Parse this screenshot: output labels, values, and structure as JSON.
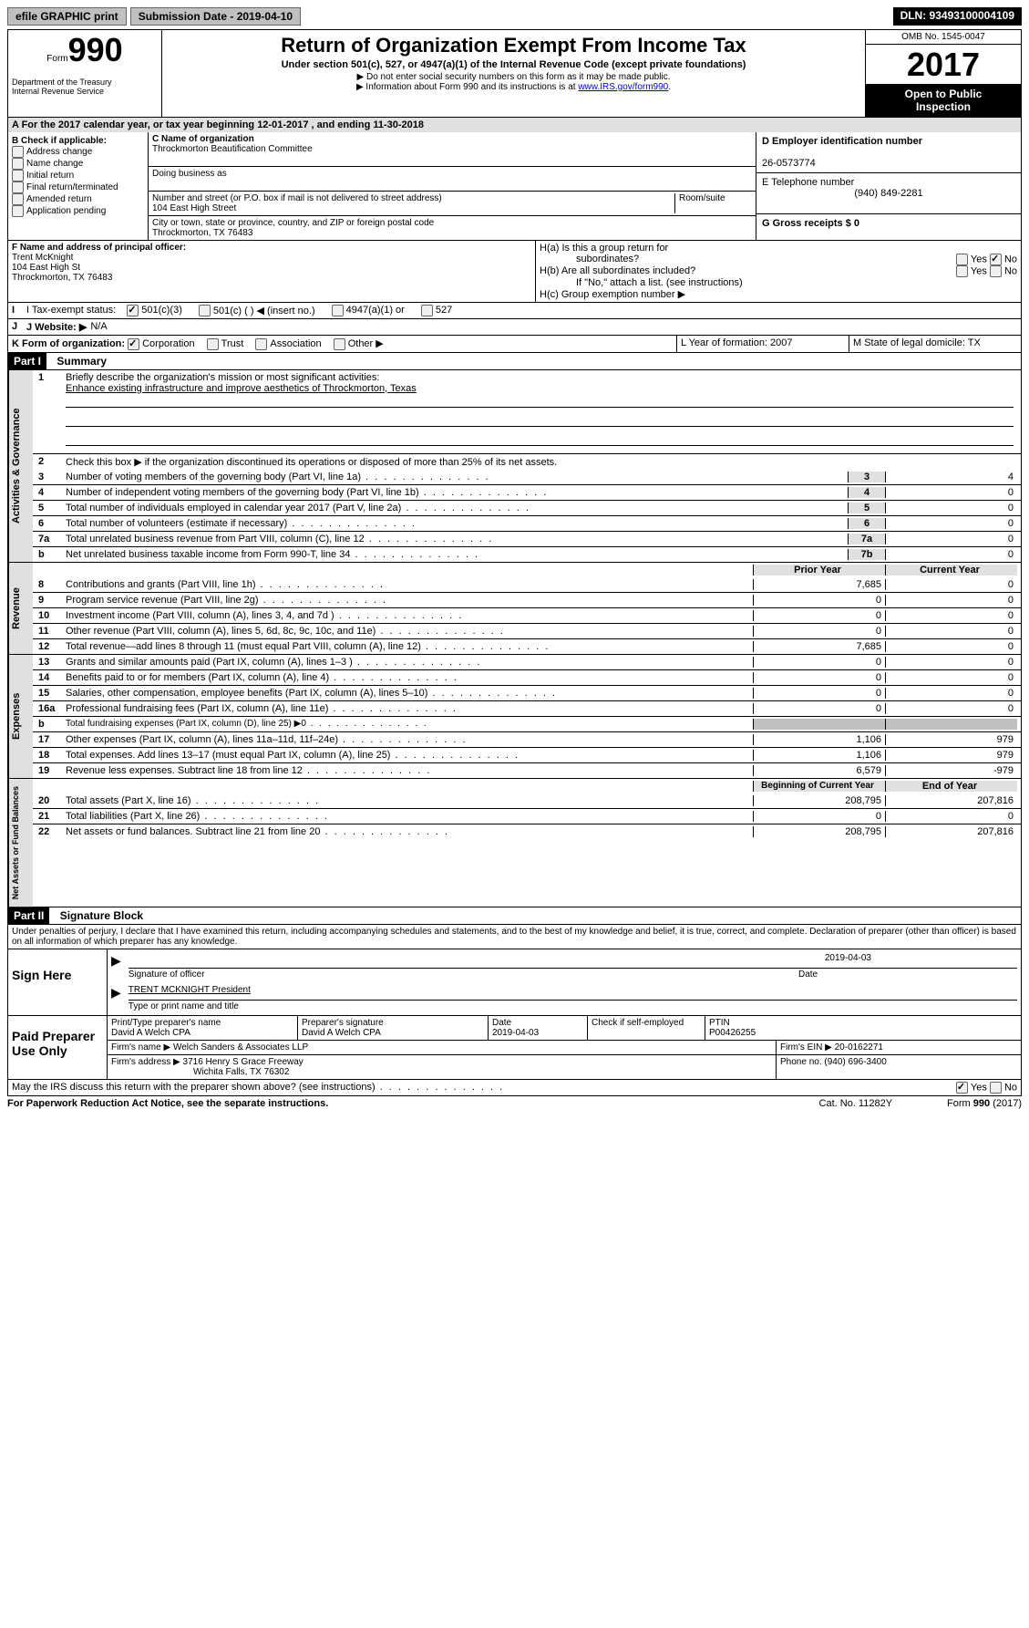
{
  "topbar": {
    "efile": "efile GRAPHIC print",
    "submission": "Submission Date - 2019-04-10",
    "dln": "DLN: 93493100004109"
  },
  "header": {
    "form_label": "Form",
    "form_num": "990",
    "dept1": "Department of the Treasury",
    "dept2": "Internal Revenue Service",
    "title": "Return of Organization Exempt From Income Tax",
    "sub": "Under section 501(c), 527, or 4947(a)(1) of the Internal Revenue Code (except private foundations)",
    "note1": "▶ Do not enter social security numbers on this form as it may be made public.",
    "note2_pre": "▶ Information about Form 990 and its instructions is at ",
    "note2_link": "www.IRS.gov/form990",
    "omb": "OMB No. 1545-0047",
    "year": "2017",
    "inspect1": "Open to Public",
    "inspect2": "Inspection"
  },
  "section_a": "A  For the 2017 calendar year, or tax year beginning 12-01-2017   , and ending 11-30-2018",
  "section_b": {
    "label": "B Check if applicable:",
    "items": [
      "Address change",
      "Name change",
      "Initial return",
      "Final return/terminated",
      "Amended return",
      "Application pending"
    ]
  },
  "section_c": {
    "name_label": "C Name of organization",
    "name": "Throckmorton Beautification Committee",
    "dba_label": "Doing business as",
    "addr_label": "Number and street (or P.O. box if mail is not delivered to street address)",
    "room_label": "Room/suite",
    "addr": "104 East High Street",
    "city_label": "City or town, state or province, country, and ZIP or foreign postal code",
    "city": "Throckmorton, TX  76483"
  },
  "section_d": {
    "ein_label": "D Employer identification number",
    "ein": "26-0573774",
    "tel_label": "E Telephone number",
    "tel": "(940) 849-2281",
    "gross_label": "G Gross receipts $ 0"
  },
  "section_f": {
    "label": "F  Name and address of principal officer:",
    "name": "Trent McKnight",
    "addr": "104 East High St",
    "city": "Throckmorton, TX  76483"
  },
  "section_h": {
    "ha": "H(a)  Is this a group return for",
    "ha2": "subordinates?",
    "hb": "H(b)  Are all subordinates included?",
    "hb_note": "If \"No,\" attach a list. (see instructions)",
    "hc": "H(c)  Group exemption number ▶",
    "yes": "Yes",
    "no": "No"
  },
  "section_i": {
    "label": "I  Tax-exempt status:",
    "opt1": "501(c)(3)",
    "opt2": "501(c) (   ) ◀ (insert no.)",
    "opt3": "4947(a)(1) or",
    "opt4": "527"
  },
  "section_j": {
    "label": "J  Website: ▶",
    "value": "N/A"
  },
  "section_k": {
    "label": "K Form of organization:",
    "opts": [
      "Corporation",
      "Trust",
      "Association",
      "Other ▶"
    ],
    "l_label": "L Year of formation: 2007",
    "m_label": "M State of legal domicile: TX"
  },
  "part1": {
    "header": "Part I",
    "title": "Summary",
    "gov_label": "Activities & Governance",
    "rev_label": "Revenue",
    "exp_label": "Expenses",
    "net_label": "Net Assets or Fund Balances",
    "line1": "Briefly describe the organization's mission or most significant activities:",
    "mission": "Enhance existing infrastructure and improve aesthetics of Throckmorton, Texas",
    "line2": "Check this box ▶        if the organization discontinued its operations or disposed of more than 25% of its net assets.",
    "prior_year": "Prior Year",
    "current_year": "Current Year",
    "begin_year": "Beginning of Current Year",
    "end_year": "End of Year",
    "rows_gov": [
      {
        "no": "3",
        "text": "Number of voting members of the governing body (Part VI, line 1a)",
        "box": "3",
        "val": "4"
      },
      {
        "no": "4",
        "text": "Number of independent voting members of the governing body (Part VI, line 1b)",
        "box": "4",
        "val": "0"
      },
      {
        "no": "5",
        "text": "Total number of individuals employed in calendar year 2017 (Part V, line 2a)",
        "box": "5",
        "val": "0"
      },
      {
        "no": "6",
        "text": "Total number of volunteers (estimate if necessary)",
        "box": "6",
        "val": "0"
      },
      {
        "no": "7a",
        "text": "Total unrelated business revenue from Part VIII, column (C), line 12",
        "box": "7a",
        "val": "0"
      },
      {
        "no": "b",
        "text": "Net unrelated business taxable income from Form 990-T, line 34",
        "box": "7b",
        "val": "0"
      }
    ],
    "rows_rev": [
      {
        "no": "8",
        "text": "Contributions and grants (Part VIII, line 1h)",
        "p": "7,685",
        "c": "0"
      },
      {
        "no": "9",
        "text": "Program service revenue (Part VIII, line 2g)",
        "p": "0",
        "c": "0"
      },
      {
        "no": "10",
        "text": "Investment income (Part VIII, column (A), lines 3, 4, and 7d )",
        "p": "0",
        "c": "0"
      },
      {
        "no": "11",
        "text": "Other revenue (Part VIII, column (A), lines 5, 6d, 8c, 9c, 10c, and 11e)",
        "p": "0",
        "c": "0"
      },
      {
        "no": "12",
        "text": "Total revenue—add lines 8 through 11 (must equal Part VIII, column (A), line 12)",
        "p": "7,685",
        "c": "0"
      }
    ],
    "rows_exp": [
      {
        "no": "13",
        "text": "Grants and similar amounts paid (Part IX, column (A), lines 1–3 )",
        "p": "0",
        "c": "0"
      },
      {
        "no": "14",
        "text": "Benefits paid to or for members (Part IX, column (A), line 4)",
        "p": "0",
        "c": "0"
      },
      {
        "no": "15",
        "text": "Salaries, other compensation, employee benefits (Part IX, column (A), lines 5–10)",
        "p": "0",
        "c": "0"
      },
      {
        "no": "16a",
        "text": "Professional fundraising fees (Part IX, column (A), line 11e)",
        "p": "0",
        "c": "0"
      },
      {
        "no": "b",
        "text": "Total fundraising expenses (Part IX, column (D), line 25) ▶0",
        "p": "",
        "c": "",
        "grey": true
      },
      {
        "no": "17",
        "text": "Other expenses (Part IX, column (A), lines 11a–11d, 11f–24e)",
        "p": "1,106",
        "c": "979"
      },
      {
        "no": "18",
        "text": "Total expenses. Add lines 13–17 (must equal Part IX, column (A), line 25)",
        "p": "1,106",
        "c": "979"
      },
      {
        "no": "19",
        "text": "Revenue less expenses. Subtract line 18 from line 12",
        "p": "6,579",
        "c": "-979"
      }
    ],
    "rows_net": [
      {
        "no": "20",
        "text": "Total assets (Part X, line 16)",
        "p": "208,795",
        "c": "207,816"
      },
      {
        "no": "21",
        "text": "Total liabilities (Part X, line 26)",
        "p": "0",
        "c": "0"
      },
      {
        "no": "22",
        "text": "Net assets or fund balances. Subtract line 21 from line 20",
        "p": "208,795",
        "c": "207,816"
      }
    ]
  },
  "part2": {
    "header": "Part II",
    "title": "Signature Block",
    "declare": "Under penalties of perjury, I declare that I have examined this return, including accompanying schedules and statements, and to the best of my knowledge and belief, it is true, correct, and complete. Declaration of preparer (other than officer) is based on all information of which preparer has any knowledge.",
    "sign_here": "Sign Here",
    "sig_officer": "Signature of officer",
    "date": "Date",
    "sig_date": "2019-04-03",
    "officer_name": "TRENT MCKNIGHT President",
    "type_name": "Type or print name and title",
    "paid_prep": "Paid Preparer Use Only",
    "prep_name_label": "Print/Type preparer's name",
    "prep_name": "David A Welch CPA",
    "prep_sig_label": "Preparer's signature",
    "prep_sig": "David A Welch CPA",
    "prep_date_label": "Date",
    "prep_date": "2019-04-03",
    "check_self": "Check        if self-employed",
    "ptin_label": "PTIN",
    "ptin": "P00426255",
    "firm_name_label": "Firm's name     ▶",
    "firm_name": "Welch Sanders & Associates LLP",
    "firm_ein_label": "Firm's EIN ▶",
    "firm_ein": "20-0162271",
    "firm_addr_label": "Firm's address ▶",
    "firm_addr1": "3716 Henry S Grace Freeway",
    "firm_addr2": "Wichita Falls, TX  76302",
    "phone_label": "Phone no.",
    "phone": "(940) 696-3400",
    "discuss": "May the IRS discuss this return with the preparer shown above? (see instructions)"
  },
  "footer": {
    "left": "For Paperwork Reduction Act Notice, see the separate instructions.",
    "mid": "Cat. No. 11282Y",
    "right": "Form 990 (2017)"
  }
}
